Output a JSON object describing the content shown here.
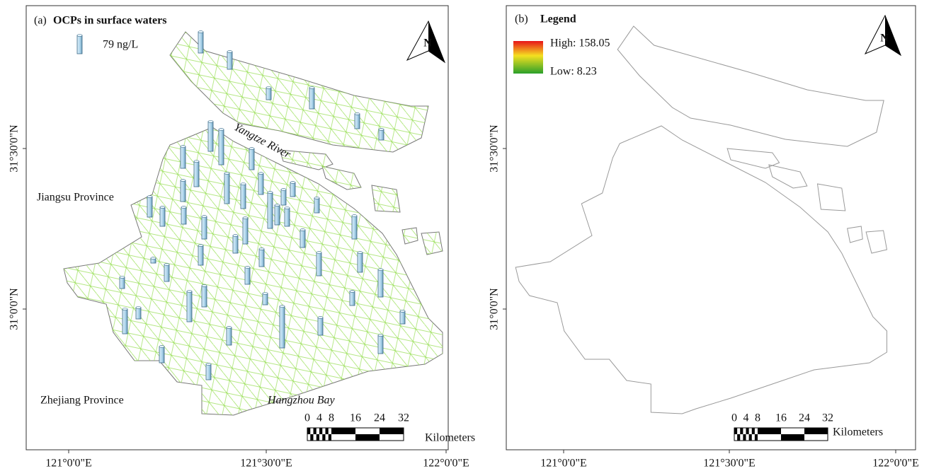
{
  "panels": [
    {
      "label": "(a)",
      "title": "OCPs in surface waters",
      "legend": {
        "value": 79,
        "label": "79 ng/L"
      },
      "places": [
        "Jiangsu Province",
        "Zhejiang Province",
        "Yangtze River",
        "Hangzhou Bay"
      ],
      "sites": [
        91,
        76,
        52,
        91,
        64,
        46,
        128,
        152,
        91,
        94,
        109,
        131,
        106,
        91,
        91,
        88,
        82,
        73,
        97,
        155,
        67,
        61,
        85,
        79,
        64,
        112,
        76,
        76,
        100,
        85,
        76,
        100,
        85,
        21,
        73,
        73,
        49,
        118,
        91,
        131,
        49,
        61,
        106,
        49,
        179,
        76,
        55,
        76,
        79,
        70,
        67
      ]
    },
    {
      "label": "(b)",
      "title": "Legend",
      "high": "High: 158.05",
      "low": "Low: 8.23"
    }
  ],
  "axes": {
    "x": [
      "121°0'0\"E",
      "121°30'0\"E",
      "122°0'0\"E"
    ],
    "y": [
      "31°30'0\"N",
      "31°0'0\"N"
    ]
  },
  "scale": {
    "ticks": [
      0,
      4,
      8,
      16,
      24,
      32
    ],
    "unit": "Kilometers"
  },
  "north": "N"
}
